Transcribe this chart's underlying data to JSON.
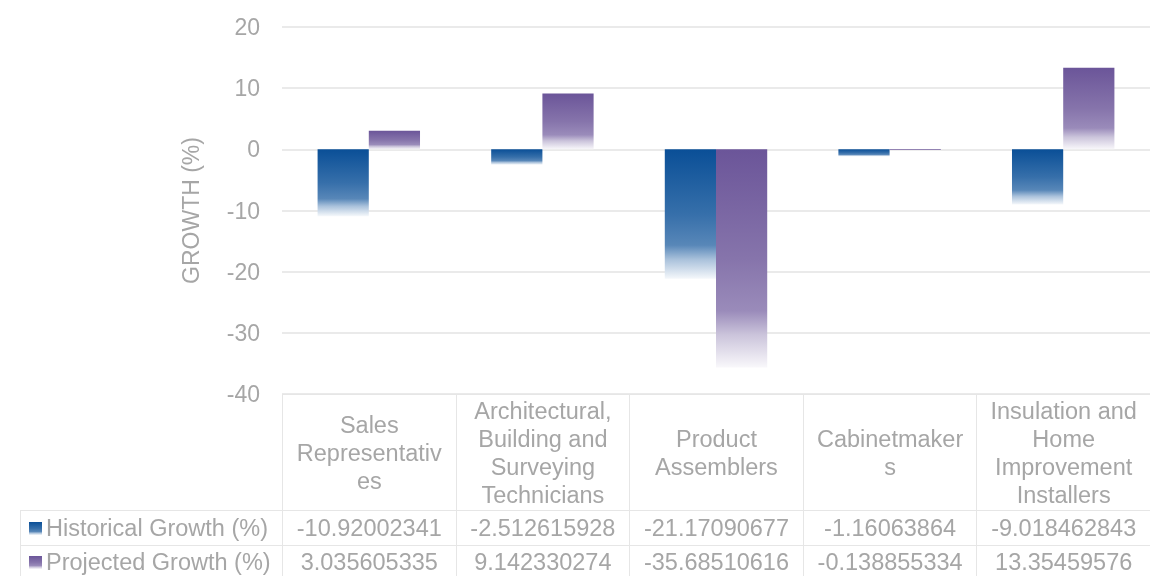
{
  "chart_data": {
    "type": "bar",
    "ylabel": "GROWTH (%)",
    "categories": [
      "Sales Representatives",
      "Architectural, Building and Surveying Technicians",
      "Product Assemblers",
      "Cabinetmakers",
      "Insulation and Home Improvement Installers"
    ],
    "series": [
      {
        "name": "Historical Growth (%)",
        "color": "#0a4f97",
        "values": [
          -10.92002341,
          -2.512615928,
          -21.17090677,
          -1.16063864,
          -9.018462843
        ]
      },
      {
        "name": "Projected Growth (%)",
        "color": "#6b5599",
        "values": [
          3.035605335,
          9.142330274,
          -35.68510616,
          -0.138855334,
          13.35459576
        ]
      }
    ],
    "ylim": [
      -40,
      20
    ],
    "yticks": [
      -40,
      -30,
      -20,
      -10,
      0,
      10,
      20
    ],
    "grid": "y",
    "legend": "bottom",
    "data_labels": true
  }
}
